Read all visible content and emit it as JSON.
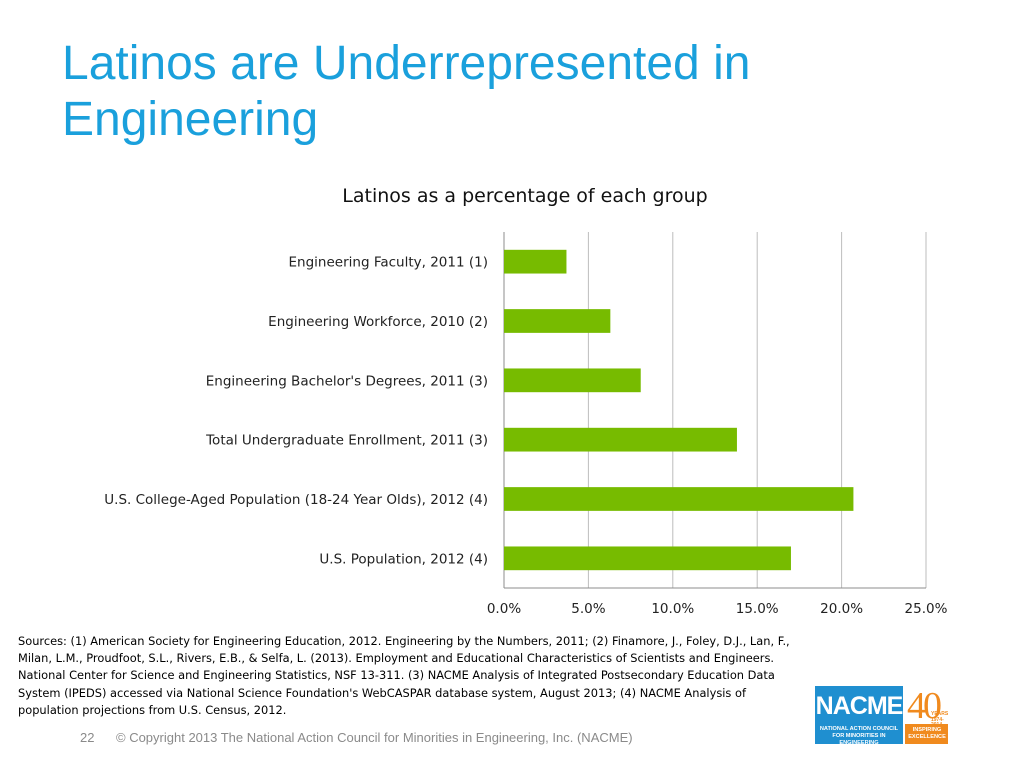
{
  "slide": {
    "title": "Latinos are Underrepresented in Engineering",
    "sources": "Sources: (1) American Society for Engineering Education, 2012. Engineering by the Numbers, 2011; (2) Finamore, J., Foley, D.J., Lan, F., Milan, L.M., Proudfoot, S.L., Rivers, E.B., & Selfa, L. (2013). Employment and Educational Characteristics of Scientists and Engineers. National Center for Science and Engineering Statistics, NSF 13-311. (3) NACME Analysis of Integrated Postsecondary Education Data System (IPEDS) accessed via National Science Foundation's WebCASPAR database system, August 2013; (4) NACME Analysis of population projections from U.S. Census, 2012.",
    "page_number": "22",
    "copyright": "© Copyright 2013 The National Action Council for Minorities in Engineering, Inc. (NACME)"
  },
  "logo": {
    "name": "NACME",
    "digits": "40",
    "years_text": "YEARS",
    "years_sub": "1974-2014",
    "subtitle": "NATIONAL ACTION COUNCIL FOR MINORITIES IN ENGINEERING",
    "tagline": "INSPIRING EXCELLENCE",
    "colors": {
      "blue": "#1f8fd0",
      "orange": "#f08a1e"
    }
  },
  "chart_data": {
    "type": "bar",
    "orientation": "horizontal",
    "title": "Latinos as a percentage of each group",
    "categories": [
      "Engineering Faculty, 2011 (1)",
      "Engineering Workforce, 2010 (2)",
      "Engineering Bachelor's Degrees, 2011 (3)",
      "Total Undergraduate Enrollment, 2011 (3)",
      "U.S. College-Aged Population (18-24 Year Olds), 2012 (4)",
      "U.S. Population, 2012 (4)"
    ],
    "values": [
      3.7,
      6.3,
      8.1,
      13.8,
      20.7,
      17.0
    ],
    "xlim": [
      0,
      25
    ],
    "xticks": [
      0,
      5,
      10,
      15,
      20,
      25
    ],
    "xtick_labels": [
      "0.0%",
      "5.0%",
      "10.0%",
      "15.0%",
      "20.0%",
      "25.0%"
    ],
    "grid": true,
    "legend": "none",
    "bar_color": "#77bb00",
    "xlabel": "",
    "ylabel": ""
  }
}
